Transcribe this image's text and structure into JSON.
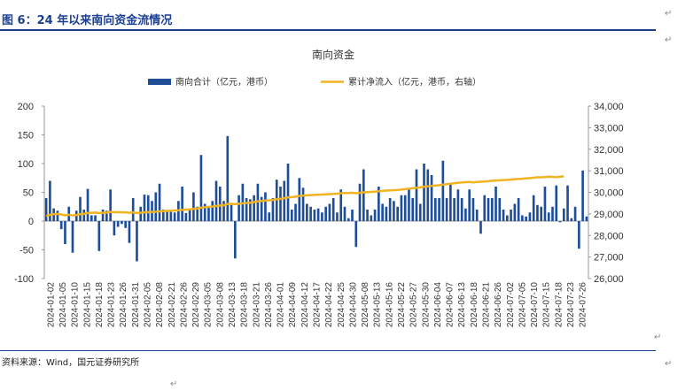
{
  "figure": {
    "title": "图 6：24 年以来南向资金流情况",
    "source": "资料来源：Wind，国元证券研究所"
  },
  "colors": {
    "bar": "#1f4e99",
    "line": "#f0b322",
    "header_rule": "#1a3f94",
    "axis_text": "#333333"
  },
  "chart_data": {
    "type": "bar",
    "title": "南向资金",
    "legend_position": "top-center",
    "grid": false,
    "x_tick_labels": [
      "2024-01-02",
      "2024-01-05",
      "2024-01-10",
      "2024-01-15",
      "2024-01-18",
      "2024-01-23",
      "2024-01-26",
      "2024-01-31",
      "2024-02-05",
      "2024-02-08",
      "2024-02-21",
      "2024-02-26",
      "2024-02-29",
      "2024-03-05",
      "2024-03-08",
      "2024-03-13",
      "2024-03-18",
      "2024-03-21",
      "2024-03-26",
      "2024-04-01",
      "2024-04-09",
      "2024-04-12",
      "2024-04-17",
      "2024-04-22",
      "2024-04-25",
      "2024-04-30",
      "2024-05-08",
      "2024-05-13",
      "2024-05-16",
      "2024-05-22",
      "2024-05-27",
      "2024-05-30",
      "2024-06-04",
      "2024-06-07",
      "2024-06-13",
      "2024-06-18",
      "2024-06-21",
      "2024-06-26",
      "2024-07-02",
      "2024-07-05",
      "2024-07-10",
      "2024-07-15",
      "2024-07-18",
      "2024-07-23",
      "2024-07-26"
    ],
    "y_left": {
      "ylim": [
        -100,
        200
      ],
      "ticks": [
        -100,
        -50,
        0,
        50,
        100,
        150,
        200
      ]
    },
    "y_right": {
      "ylim": [
        26000,
        34000
      ],
      "ticks": [
        "26,000",
        "27,000",
        "28,000",
        "29,000",
        "30,000",
        "31,000",
        "32,000",
        "33,000",
        "34,000"
      ]
    },
    "series": [
      {
        "name": "南向合计（亿元，港币）",
        "type": "bar",
        "axis": "left",
        "values": [
          40,
          70,
          22,
          18,
          -14,
          -40,
          25,
          -55,
          18,
          42,
          20,
          56,
          10,
          10,
          -52,
          20,
          18,
          55,
          -25,
          -10,
          -5,
          -12,
          -38,
          40,
          -70,
          25,
          46,
          45,
          35,
          50,
          65,
          20,
          18,
          16,
          15,
          35,
          60,
          14,
          20,
          50,
          25,
          115,
          30,
          25,
          35,
          70,
          60,
          35,
          148,
          28,
          -65,
          45,
          65,
          40,
          38,
          45,
          65,
          42,
          50,
          15,
          40,
          72,
          60,
          70,
          100,
          20,
          30,
          75,
          58,
          30,
          25,
          20,
          22,
          15,
          25,
          30,
          40,
          15,
          55,
          25,
          5,
          20,
          -45,
          65,
          90,
          20,
          10,
          20,
          60,
          30,
          25,
          40,
          35,
          25,
          45,
          45,
          55,
          40,
          90,
          30,
          100,
          90,
          80,
          40,
          40,
          105,
          40,
          65,
          40,
          55,
          40,
          22,
          55,
          40,
          20,
          -22,
          45,
          40,
          40,
          60,
          40,
          20,
          10,
          20,
          30,
          40,
          10,
          8,
          15,
          45,
          28,
          25,
          60,
          15,
          25,
          62,
          -2,
          22,
          62,
          5,
          25,
          -48,
          88,
          8
        ]
      },
      {
        "name": "累计净流入（亿元，港币，右轴）",
        "type": "line",
        "axis": "right",
        "values": [
          28900,
          28960,
          28990,
          29000,
          28970,
          28940,
          28960,
          28930,
          28950,
          28990,
          29000,
          29040,
          29050,
          29060,
          29040,
          29050,
          29060,
          29090,
          29080,
          29080,
          29070,
          29070,
          29050,
          29070,
          29040,
          29050,
          29070,
          29080,
          29090,
          29100,
          29120,
          29130,
          29140,
          29150,
          29160,
          29170,
          29190,
          29200,
          29210,
          29230,
          29250,
          29290,
          29310,
          29330,
          29340,
          29370,
          29390,
          29400,
          29460,
          29470,
          29450,
          29470,
          29490,
          29510,
          29520,
          29550,
          29580,
          29600,
          29620,
          29630,
          29650,
          29680,
          29700,
          29730,
          29770,
          29780,
          29800,
          29830,
          29850,
          29860,
          29870,
          29880,
          29890,
          29900,
          29910,
          29920,
          29930,
          29940,
          29960,
          29970,
          29970,
          29980,
          29960,
          29980,
          30000,
          30010,
          30020,
          30030,
          30050,
          30070,
          30080,
          30090,
          30100,
          30110,
          30130,
          30150,
          30170,
          30190,
          30210,
          30230,
          30260,
          30280,
          30300,
          30320,
          30330,
          30360,
          30380,
          30400,
          30420,
          30440,
          30460,
          30470,
          30480,
          30460,
          30480,
          30490,
          30500,
          30520,
          30540,
          30550,
          30560,
          30570,
          30580,
          30590,
          30610,
          30620,
          30630,
          30650,
          30660,
          30680,
          30700,
          30700,
          30710,
          30730,
          30720,
          30700,
          30730,
          30740
        ]
      }
    ]
  }
}
